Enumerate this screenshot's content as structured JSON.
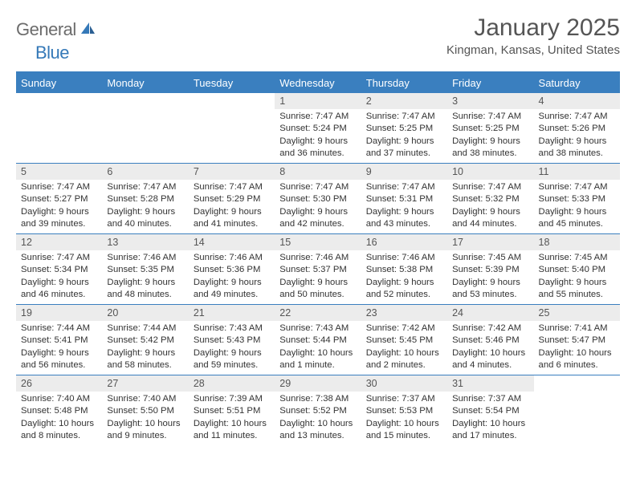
{
  "brand": {
    "text1": "General",
    "text2": "Blue"
  },
  "title": "January 2025",
  "location": "Kingman, Kansas, United States",
  "colors": {
    "header_bg": "#3a7fbf",
    "header_text": "#ffffff",
    "daynum_bg": "#ececec",
    "text": "#333333",
    "rule": "#3a7fbf",
    "title_color": "#555555",
    "logo_gray": "#6c6c6c",
    "logo_blue": "#3579b8"
  },
  "typography": {
    "title_fontsize": 30,
    "location_fontsize": 15,
    "th_fontsize": 13,
    "body_fontsize": 11.3
  },
  "columns": [
    "Sunday",
    "Monday",
    "Tuesday",
    "Wednesday",
    "Thursday",
    "Friday",
    "Saturday"
  ],
  "weeks": [
    [
      null,
      null,
      null,
      {
        "n": "1",
        "sunrise": "7:47 AM",
        "sunset": "5:24 PM",
        "daylight": "9 hours and 36 minutes."
      },
      {
        "n": "2",
        "sunrise": "7:47 AM",
        "sunset": "5:25 PM",
        "daylight": "9 hours and 37 minutes."
      },
      {
        "n": "3",
        "sunrise": "7:47 AM",
        "sunset": "5:25 PM",
        "daylight": "9 hours and 38 minutes."
      },
      {
        "n": "4",
        "sunrise": "7:47 AM",
        "sunset": "5:26 PM",
        "daylight": "9 hours and 38 minutes."
      }
    ],
    [
      {
        "n": "5",
        "sunrise": "7:47 AM",
        "sunset": "5:27 PM",
        "daylight": "9 hours and 39 minutes."
      },
      {
        "n": "6",
        "sunrise": "7:47 AM",
        "sunset": "5:28 PM",
        "daylight": "9 hours and 40 minutes."
      },
      {
        "n": "7",
        "sunrise": "7:47 AM",
        "sunset": "5:29 PM",
        "daylight": "9 hours and 41 minutes."
      },
      {
        "n": "8",
        "sunrise": "7:47 AM",
        "sunset": "5:30 PM",
        "daylight": "9 hours and 42 minutes."
      },
      {
        "n": "9",
        "sunrise": "7:47 AM",
        "sunset": "5:31 PM",
        "daylight": "9 hours and 43 minutes."
      },
      {
        "n": "10",
        "sunrise": "7:47 AM",
        "sunset": "5:32 PM",
        "daylight": "9 hours and 44 minutes."
      },
      {
        "n": "11",
        "sunrise": "7:47 AM",
        "sunset": "5:33 PM",
        "daylight": "9 hours and 45 minutes."
      }
    ],
    [
      {
        "n": "12",
        "sunrise": "7:47 AM",
        "sunset": "5:34 PM",
        "daylight": "9 hours and 46 minutes."
      },
      {
        "n": "13",
        "sunrise": "7:46 AM",
        "sunset": "5:35 PM",
        "daylight": "9 hours and 48 minutes."
      },
      {
        "n": "14",
        "sunrise": "7:46 AM",
        "sunset": "5:36 PM",
        "daylight": "9 hours and 49 minutes."
      },
      {
        "n": "15",
        "sunrise": "7:46 AM",
        "sunset": "5:37 PM",
        "daylight": "9 hours and 50 minutes."
      },
      {
        "n": "16",
        "sunrise": "7:46 AM",
        "sunset": "5:38 PM",
        "daylight": "9 hours and 52 minutes."
      },
      {
        "n": "17",
        "sunrise": "7:45 AM",
        "sunset": "5:39 PM",
        "daylight": "9 hours and 53 minutes."
      },
      {
        "n": "18",
        "sunrise": "7:45 AM",
        "sunset": "5:40 PM",
        "daylight": "9 hours and 55 minutes."
      }
    ],
    [
      {
        "n": "19",
        "sunrise": "7:44 AM",
        "sunset": "5:41 PM",
        "daylight": "9 hours and 56 minutes."
      },
      {
        "n": "20",
        "sunrise": "7:44 AM",
        "sunset": "5:42 PM",
        "daylight": "9 hours and 58 minutes."
      },
      {
        "n": "21",
        "sunrise": "7:43 AM",
        "sunset": "5:43 PM",
        "daylight": "9 hours and 59 minutes."
      },
      {
        "n": "22",
        "sunrise": "7:43 AM",
        "sunset": "5:44 PM",
        "daylight": "10 hours and 1 minute."
      },
      {
        "n": "23",
        "sunrise": "7:42 AM",
        "sunset": "5:45 PM",
        "daylight": "10 hours and 2 minutes."
      },
      {
        "n": "24",
        "sunrise": "7:42 AM",
        "sunset": "5:46 PM",
        "daylight": "10 hours and 4 minutes."
      },
      {
        "n": "25",
        "sunrise": "7:41 AM",
        "sunset": "5:47 PM",
        "daylight": "10 hours and 6 minutes."
      }
    ],
    [
      {
        "n": "26",
        "sunrise": "7:40 AM",
        "sunset": "5:48 PM",
        "daylight": "10 hours and 8 minutes."
      },
      {
        "n": "27",
        "sunrise": "7:40 AM",
        "sunset": "5:50 PM",
        "daylight": "10 hours and 9 minutes."
      },
      {
        "n": "28",
        "sunrise": "7:39 AM",
        "sunset": "5:51 PM",
        "daylight": "10 hours and 11 minutes."
      },
      {
        "n": "29",
        "sunrise": "7:38 AM",
        "sunset": "5:52 PM",
        "daylight": "10 hours and 13 minutes."
      },
      {
        "n": "30",
        "sunrise": "7:37 AM",
        "sunset": "5:53 PM",
        "daylight": "10 hours and 15 minutes."
      },
      {
        "n": "31",
        "sunrise": "7:37 AM",
        "sunset": "5:54 PM",
        "daylight": "10 hours and 17 minutes."
      },
      null
    ]
  ],
  "labels": {
    "sunrise": "Sunrise:",
    "sunset": "Sunset:",
    "daylight": "Daylight:"
  }
}
